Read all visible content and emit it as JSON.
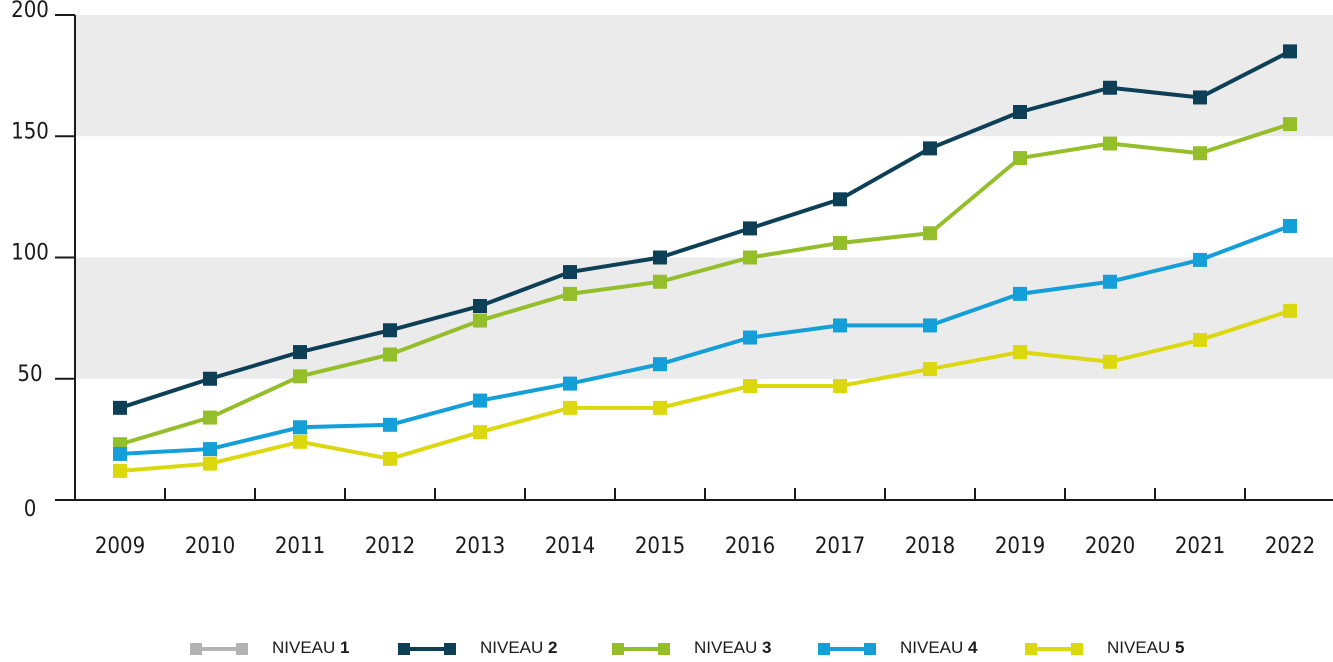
{
  "chart_data": {
    "type": "line",
    "categories": [
      "2009",
      "2010",
      "2011",
      "2012",
      "2013",
      "2014",
      "2015",
      "2016",
      "2017",
      "2018",
      "2019",
      "2020",
      "2021",
      "2022"
    ],
    "series": [
      {
        "name": "NIVEAU 1",
        "color": "#b3b3b3",
        "values": [
          null,
          null,
          null,
          null,
          null,
          null,
          null,
          null,
          null,
          null,
          null,
          null,
          null,
          null
        ]
      },
      {
        "name": "NIVEAU 2",
        "color": "#0d3f56",
        "values": [
          38,
          50,
          61,
          70,
          80,
          94,
          100,
          112,
          124,
          145,
          160,
          170,
          166,
          185
        ]
      },
      {
        "name": "NIVEAU 3",
        "color": "#94be2a",
        "values": [
          23,
          34,
          51,
          60,
          74,
          85,
          90,
          100,
          106,
          110,
          141,
          147,
          143,
          155
        ]
      },
      {
        "name": "NIVEAU 4",
        "color": "#159fd8",
        "values": [
          19,
          21,
          30,
          31,
          41,
          48,
          56,
          67,
          72,
          72,
          85,
          90,
          99,
          113
        ]
      },
      {
        "name": "NIVEAU 5",
        "color": "#dcd80f",
        "values": [
          12,
          15,
          24,
          17,
          28,
          38,
          38,
          47,
          47,
          54,
          61,
          57,
          66,
          78
        ]
      }
    ],
    "ylim": [
      0,
      200
    ],
    "yticks": [
      0,
      50,
      100,
      150,
      200
    ],
    "bands": true
  }
}
